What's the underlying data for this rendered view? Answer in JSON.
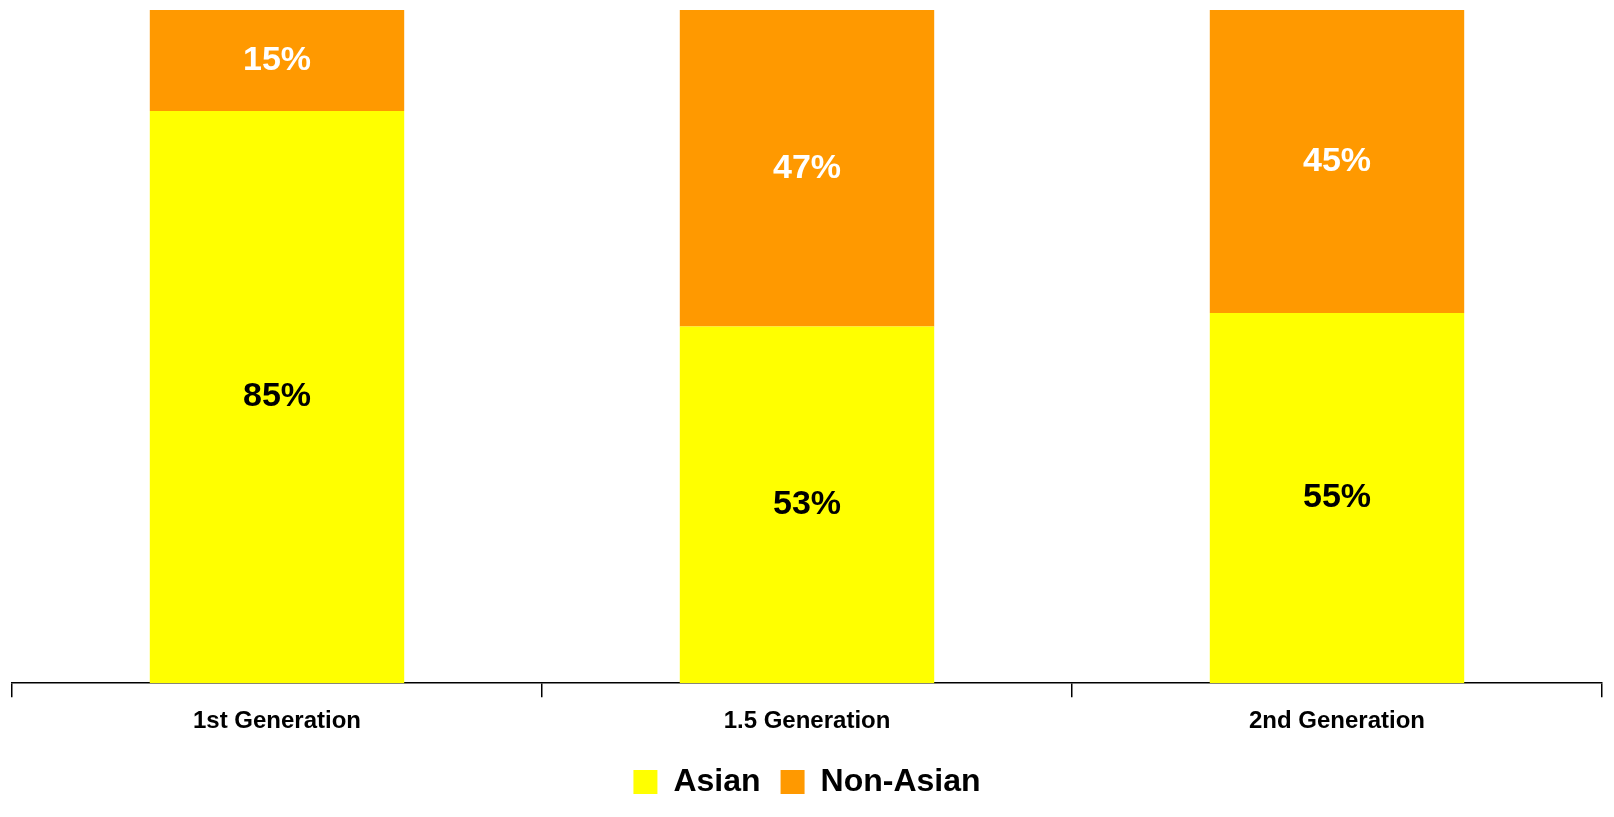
{
  "chart_data": {
    "type": "bar",
    "stacked": true,
    "categories": [
      "1st Generation",
      "1.5 Generation",
      "2nd Generation"
    ],
    "series": [
      {
        "name": "Asian",
        "color": "#ffff00",
        "values": [
          85,
          53,
          55
        ],
        "value_labels": [
          "85%",
          "53%",
          "55%"
        ]
      },
      {
        "name": "Non-Asian",
        "color": "#ff9900",
        "values": [
          15,
          47,
          45
        ],
        "value_labels": [
          "15%",
          "47%",
          "45%"
        ]
      }
    ],
    "ylim": [
      0,
      100
    ],
    "tick_labels": "x",
    "grid": false,
    "legend": "bottom"
  }
}
